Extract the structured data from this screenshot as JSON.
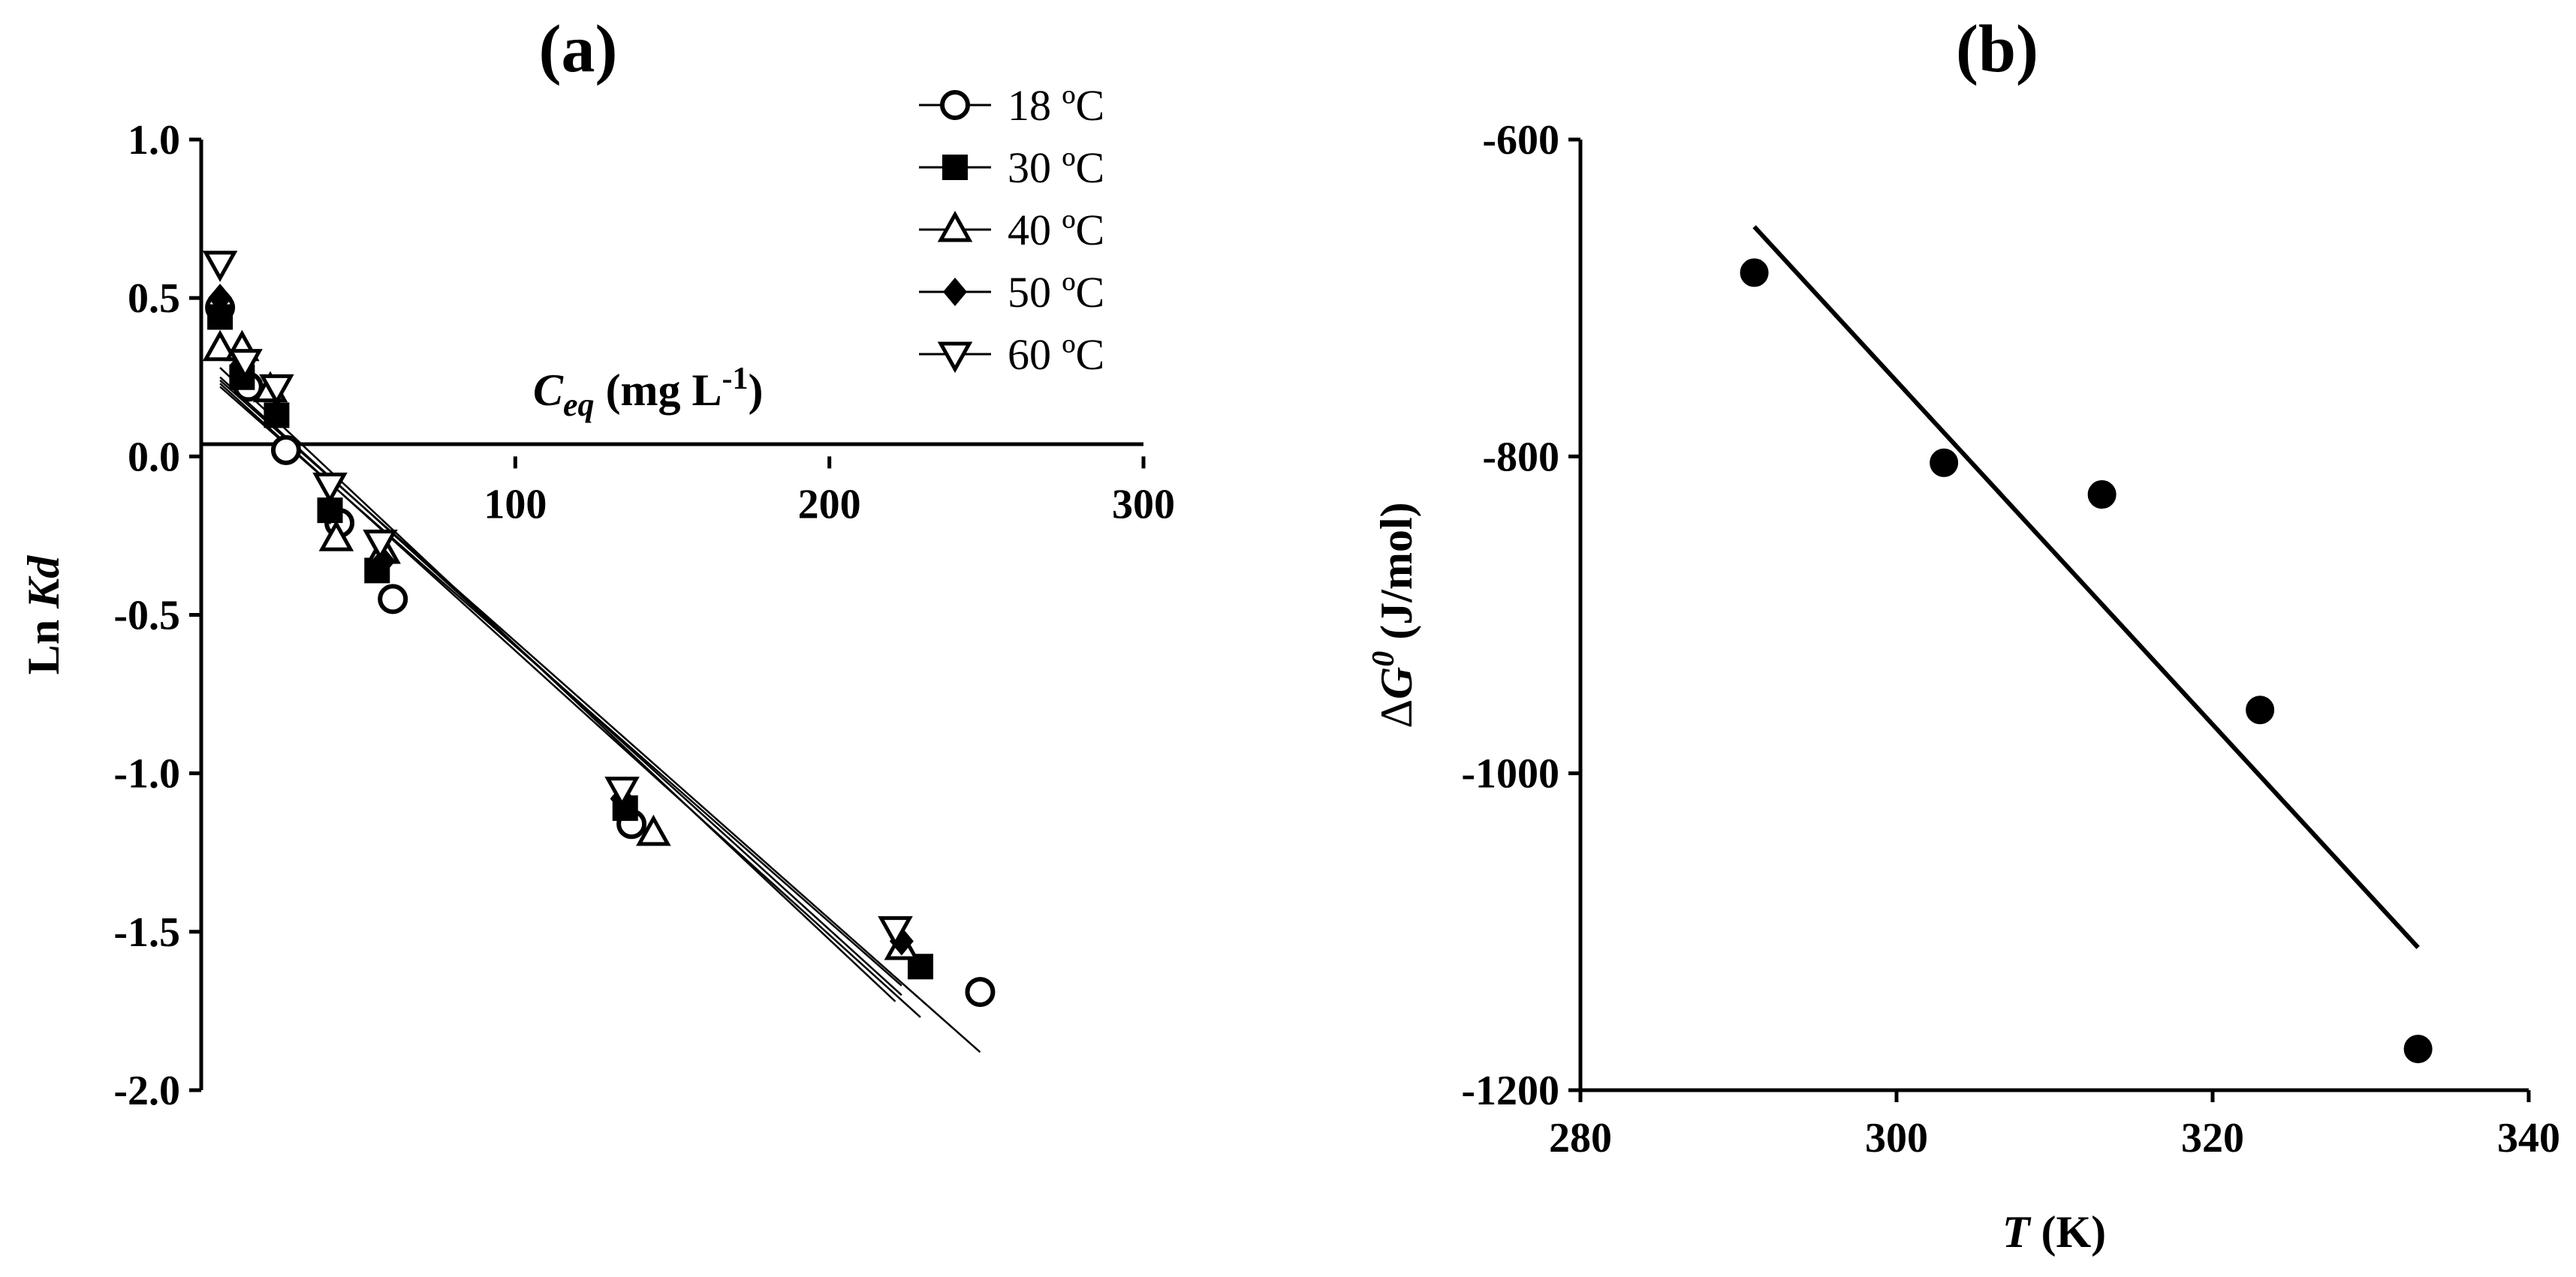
{
  "chart_data": [
    {
      "panel": "(a)",
      "type": "scatter",
      "title": "(a)",
      "xlabel": "C_eq (mg L-1)",
      "xlabel_main": "C",
      "xlabel_sub": "eq",
      "xlabel_rest": " (mg L",
      "xlabel_sup": "-1",
      "xlabel_close": ")",
      "ylabel": "Ln Kd",
      "ylabel_main": "Ln ",
      "ylabel_italic": "Kd",
      "xlim": [
        0,
        300
      ],
      "ylim": [
        -2.0,
        1.0
      ],
      "xticks": [
        100,
        200,
        300
      ],
      "xtick_labels": [
        "100",
        "200",
        "300"
      ],
      "yticks": [
        1.0,
        0.5,
        0.0,
        -0.5,
        -1.0,
        -1.5,
        -2.0
      ],
      "ytick_labels": [
        "1.0",
        "0.5",
        "0.0",
        "-0.5",
        "-1.0",
        "-1.5",
        "-2.0"
      ],
      "x_axis_at_y": 0,
      "legend_position": "top-right",
      "series": [
        {
          "name": "18 ºC",
          "marker": "circle-open",
          "x": [
            6,
            15,
            27,
            44,
            61,
            137,
            248
          ],
          "y": [
            0.47,
            0.22,
            0.02,
            -0.21,
            -0.45,
            -1.16,
            -1.69
          ],
          "fit": {
            "x": [
              6,
              248
            ],
            "y": [
              0.24,
              -1.88
            ]
          }
        },
        {
          "name": "30 ºC",
          "marker": "square-filled",
          "x": [
            6,
            13,
            24,
            41,
            56,
            135,
            229
          ],
          "y": [
            0.44,
            0.25,
            0.13,
            -0.17,
            -0.36,
            -1.11,
            -1.61
          ],
          "fit": {
            "x": [
              6,
              229
            ],
            "y": [
              0.23,
              -1.77
            ]
          }
        },
        {
          "name": "40 ºC",
          "marker": "triangle-up-open",
          "x": [
            6,
            13,
            22,
            43,
            58,
            144,
            223
          ],
          "y": [
            0.34,
            0.34,
            0.21,
            -0.26,
            -0.3,
            -1.19,
            -1.55
          ],
          "fit": {
            "x": [
              6,
              223
            ],
            "y": [
              0.22,
              -1.67
            ]
          }
        },
        {
          "name": "50 ºC",
          "marker": "diamond-filled",
          "x": [
            6,
            13,
            24,
            41,
            58,
            134,
            223
          ],
          "y": [
            0.5,
            0.29,
            0.14,
            -0.17,
            -0.33,
            -1.08,
            -1.53
          ],
          "fit": {
            "x": [
              6,
              223
            ],
            "y": [
              0.25,
              -1.7
            ]
          }
        },
        {
          "name": "60 ºC",
          "marker": "triangle-down-open",
          "x": [
            6,
            14,
            24,
            41,
            57,
            134,
            221
          ],
          "y": [
            0.61,
            0.3,
            0.22,
            -0.09,
            -0.27,
            -1.05,
            -1.49
          ],
          "fit": {
            "x": [
              6,
              221
            ],
            "y": [
              0.28,
              -1.72
            ]
          }
        }
      ]
    },
    {
      "panel": "(b)",
      "type": "scatter",
      "title": "(b)",
      "xlabel": "T (K)",
      "xlabel_italic": "T",
      "xlabel_rest": " (K)",
      "ylabel": "ΔG0 (J/mol)",
      "ylabel_delta": "Δ",
      "ylabel_italic": "G",
      "ylabel_sup": "0",
      "ylabel_rest": " (J/mol)",
      "xlim": [
        280,
        340
      ],
      "ylim": [
        -1200,
        -600
      ],
      "xticks": [
        280,
        300,
        320,
        340
      ],
      "xtick_labels": [
        "280",
        "300",
        "320",
        "340"
      ],
      "yticks": [
        -600,
        -800,
        -1000,
        -1200
      ],
      "ytick_labels": [
        "-600",
        "-800",
        "-1000",
        "-1200"
      ],
      "series": [
        {
          "marker": "circle-filled",
          "x": [
            291,
            303,
            313,
            323,
            333
          ],
          "y": [
            -684,
            -804,
            -824,
            -960,
            -1174
          ],
          "fit": {
            "x": [
              291,
              333
            ],
            "y": [
              -655,
              -1110
            ]
          }
        }
      ]
    }
  ]
}
